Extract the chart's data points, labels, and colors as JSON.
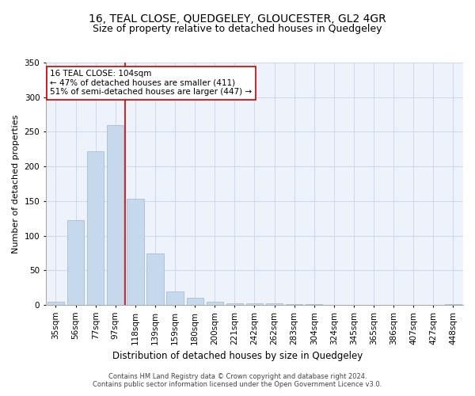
{
  "title1": "16, TEAL CLOSE, QUEDGELEY, GLOUCESTER, GL2 4GR",
  "title2": "Size of property relative to detached houses in Quedgeley",
  "xlabel": "Distribution of detached houses by size in Quedgeley",
  "ylabel": "Number of detached properties",
  "bar_labels": [
    "35sqm",
    "56sqm",
    "77sqm",
    "97sqm",
    "118sqm",
    "139sqm",
    "159sqm",
    "180sqm",
    "200sqm",
    "221sqm",
    "242sqm",
    "262sqm",
    "283sqm",
    "304sqm",
    "324sqm",
    "345sqm",
    "365sqm",
    "386sqm",
    "407sqm",
    "427sqm",
    "448sqm"
  ],
  "bar_values": [
    5,
    122,
    222,
    260,
    153,
    75,
    20,
    10,
    5,
    3,
    2,
    2,
    1,
    1,
    0,
    0,
    0,
    0,
    0,
    0,
    1
  ],
  "bar_color": "#c6d9ec",
  "bar_edge_color": "#9ab8d0",
  "vline_color": "#cc0000",
  "annotation_text": "16 TEAL CLOSE: 104sqm\n← 47% of detached houses are smaller (411)\n51% of semi-detached houses are larger (447) →",
  "annotation_box_color": "#ffffff",
  "annotation_box_edge": "#cc0000",
  "ylim": [
    0,
    350
  ],
  "yticks": [
    0,
    50,
    100,
    150,
    200,
    250,
    300,
    350
  ],
  "grid_color": "#c8d4e8",
  "bg_color": "#eef2fa",
  "footnote": "Contains HM Land Registry data © Crown copyright and database right 2024.\nContains public sector information licensed under the Open Government Licence v3.0.",
  "title1_fontsize": 10,
  "title2_fontsize": 9,
  "xlabel_fontsize": 8.5,
  "ylabel_fontsize": 8,
  "tick_fontsize": 7.5,
  "annot_fontsize": 7.5
}
